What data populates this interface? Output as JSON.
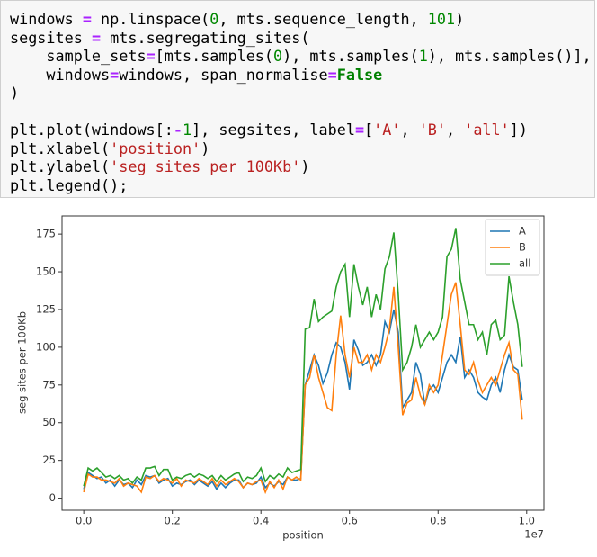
{
  "code": {
    "lines": [
      [
        {
          "text": "windows "
        },
        {
          "text": "=",
          "color": "#aa22ff",
          "bold": true
        },
        {
          "text": " np.linspace("
        },
        {
          "text": "0",
          "color": "#008800"
        },
        {
          "text": ", mts.sequence_length, "
        },
        {
          "text": "101",
          "color": "#008800"
        },
        {
          "text": ")"
        }
      ],
      [
        {
          "text": "segsites "
        },
        {
          "text": "=",
          "color": "#aa22ff",
          "bold": true
        },
        {
          "text": " mts.segregating_sites("
        }
      ],
      [
        {
          "text": "    sample_sets"
        },
        {
          "text": "=",
          "color": "#aa22ff",
          "bold": true
        },
        {
          "text": "[mts.samples("
        },
        {
          "text": "0",
          "color": "#008800"
        },
        {
          "text": "), mts.samples("
        },
        {
          "text": "1",
          "color": "#008800"
        },
        {
          "text": "), mts.samples()],"
        }
      ],
      [
        {
          "text": "    windows"
        },
        {
          "text": "=",
          "color": "#aa22ff",
          "bold": true
        },
        {
          "text": "windows, span_normalise"
        },
        {
          "text": "=",
          "color": "#aa22ff",
          "bold": true
        },
        {
          "text": "False",
          "color": "#008000",
          "bold": true
        }
      ],
      [
        {
          "text": ")"
        }
      ],
      [],
      [
        {
          "text": "plt.plot(windows[:"
        },
        {
          "text": "-",
          "color": "#aa22ff",
          "bold": true
        },
        {
          "text": "1",
          "color": "#008800"
        },
        {
          "text": "], segsites, label"
        },
        {
          "text": "=",
          "color": "#aa22ff",
          "bold": true
        },
        {
          "text": "["
        },
        {
          "text": "'A'",
          "color": "#ba2121"
        },
        {
          "text": ", "
        },
        {
          "text": "'B'",
          "color": "#ba2121"
        },
        {
          "text": ", "
        },
        {
          "text": "'all'",
          "color": "#ba2121"
        },
        {
          "text": "])"
        }
      ],
      [
        {
          "text": "plt.xlabel("
        },
        {
          "text": "'position'",
          "color": "#ba2121"
        },
        {
          "text": ")"
        }
      ],
      [
        {
          "text": "plt.ylabel("
        },
        {
          "text": "'seg sites per 100Kb'",
          "color": "#ba2121"
        },
        {
          "text": ")"
        }
      ],
      [
        {
          "text": "plt.legend();"
        }
      ]
    ]
  },
  "chart_data": {
    "type": "line",
    "xlabel": "position",
    "ylabel": "seg sites per 100Kb",
    "x_offset_label": "1e7",
    "x": [
      0,
      0.01,
      0.02,
      0.03,
      0.04,
      0.05,
      0.06,
      0.07,
      0.08,
      0.09,
      0.1,
      0.11,
      0.12,
      0.13,
      0.14,
      0.15,
      0.16,
      0.17,
      0.18,
      0.19,
      0.2,
      0.21,
      0.22,
      0.23,
      0.24,
      0.25,
      0.26,
      0.27,
      0.28,
      0.29,
      0.3,
      0.31,
      0.32,
      0.33,
      0.34,
      0.35,
      0.36,
      0.37,
      0.38,
      0.39,
      0.4,
      0.41,
      0.42,
      0.43,
      0.44,
      0.45,
      0.46,
      0.47,
      0.48,
      0.49,
      0.5,
      0.51,
      0.52,
      0.53,
      0.54,
      0.55,
      0.56,
      0.57,
      0.58,
      0.59,
      0.6,
      0.61,
      0.62,
      0.63,
      0.64,
      0.65,
      0.66,
      0.67,
      0.68,
      0.69,
      0.7,
      0.71,
      0.72,
      0.73,
      0.74,
      0.75,
      0.76,
      0.77,
      0.78,
      0.79,
      0.8,
      0.81,
      0.82,
      0.83,
      0.84,
      0.85,
      0.86,
      0.87,
      0.88,
      0.89,
      0.9,
      0.91,
      0.92,
      0.93,
      0.94,
      0.95,
      0.96,
      0.97,
      0.98,
      0.99
    ],
    "series": [
      {
        "name": "A",
        "color": "#1f77b4",
        "values": [
          6,
          17,
          15,
          13,
          14,
          10,
          12,
          8,
          12,
          9,
          10,
          7,
          12,
          9,
          15,
          14,
          15,
          10,
          12,
          13,
          8,
          10,
          9,
          11,
          12,
          9,
          12,
          10,
          8,
          11,
          6,
          10,
          7,
          10,
          12,
          12,
          7,
          10,
          9,
          10,
          14,
          7,
          10,
          8,
          11,
          9,
          14,
          12,
          12,
          13,
          75,
          85,
          95,
          88,
          76,
          83,
          95,
          103,
          100,
          90,
          72,
          105,
          98,
          88,
          90,
          95,
          88,
          95,
          117,
          110,
          125,
          110,
          60,
          65,
          70,
          90,
          82,
          62,
          72,
          75,
          70,
          80,
          90,
          95,
          90,
          107,
          80,
          85,
          80,
          70,
          67,
          65,
          75,
          80,
          70,
          85,
          95,
          87,
          85,
          65
        ]
      },
      {
        "name": "B",
        "color": "#ff7f0e",
        "values": [
          4,
          16,
          14,
          14,
          12,
          12,
          11,
          10,
          13,
          8,
          10,
          9,
          8,
          4,
          14,
          13,
          15,
          11,
          13,
          12,
          10,
          13,
          8,
          12,
          11,
          10,
          13,
          11,
          9,
          13,
          8,
          12,
          9,
          11,
          13,
          11,
          7,
          10,
          9,
          11,
          12,
          4,
          11,
          7,
          12,
          6,
          14,
          12,
          14,
          12,
          75,
          80,
          95,
          80,
          70,
          60,
          58,
          95,
          121,
          95,
          80,
          100,
          90,
          90,
          95,
          85,
          95,
          90,
          100,
          112,
          140,
          100,
          55,
          63,
          65,
          80,
          68,
          62,
          75,
          70,
          75,
          95,
          115,
          135,
          143,
          115,
          85,
          82,
          90,
          78,
          70,
          75,
          80,
          75,
          85,
          95,
          103,
          85,
          82,
          52
        ]
      },
      {
        "name": "all",
        "color": "#2ca02c",
        "values": [
          8,
          20,
          18,
          20,
          17,
          14,
          15,
          13,
          15,
          12,
          13,
          10,
          14,
          12,
          20,
          20,
          21,
          15,
          19,
          19,
          12,
          14,
          13,
          15,
          16,
          14,
          16,
          15,
          13,
          15,
          11,
          15,
          12,
          14,
          16,
          17,
          11,
          14,
          13,
          15,
          20,
          11,
          15,
          13,
          16,
          14,
          20,
          17,
          18,
          19,
          112,
          113,
          132,
          117,
          120,
          122,
          124,
          140,
          150,
          155,
          120,
          155,
          140,
          128,
          140,
          120,
          135,
          125,
          152,
          160,
          176,
          135,
          85,
          90,
          100,
          115,
          100,
          105,
          110,
          105,
          110,
          120,
          160,
          165,
          179,
          145,
          130,
          115,
          115,
          105,
          110,
          95,
          115,
          118,
          105,
          108,
          147,
          130,
          115,
          87
        ]
      }
    ],
    "xlim": [
      -0.049,
      1.039
    ],
    "ylim": [
      -8,
      187
    ],
    "xticks": [
      {
        "value": 0,
        "label": "0.0"
      },
      0.2,
      0.4,
      0.6,
      0.8,
      {
        "value": 1,
        "label": "1.0"
      }
    ],
    "yticks": [
      0,
      25,
      50,
      75,
      100,
      125,
      150,
      175
    ],
    "legend": "upper right",
    "grid": false
  }
}
